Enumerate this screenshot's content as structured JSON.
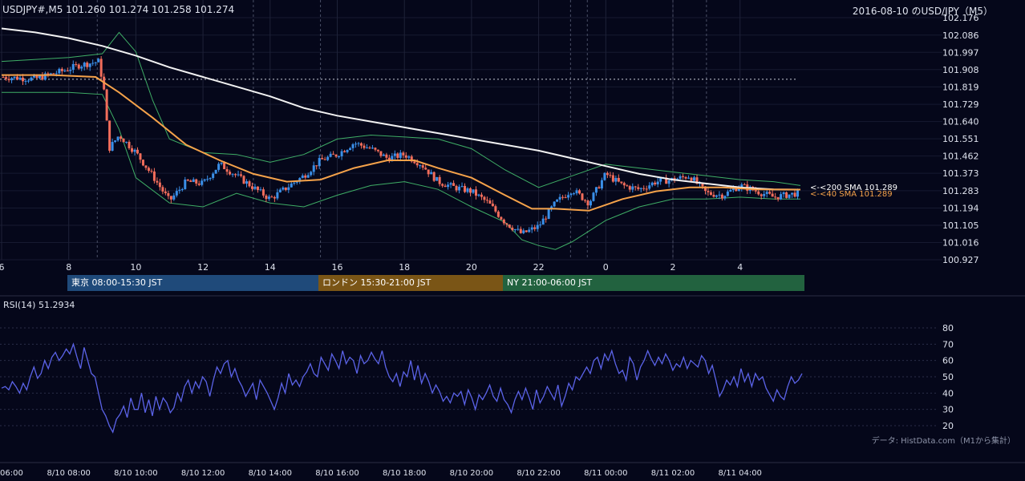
{
  "header": {
    "symbol_line": "USDJPY#,M5 101.260 101.274 101.258 101.274",
    "title": "2016-08-10 のUSD/JPY（M5）"
  },
  "sessions": [
    {
      "label": "東京 08:00-15:30 JST",
      "color": "#1f4a7a"
    },
    {
      "label": "ロンドン 15:30-21:00 JST",
      "color": "#7a5516"
    },
    {
      "label": "NY 21:00-06:00 JST",
      "color": "#22623f"
    }
  ],
  "rsi_label": "RSI(14) 51.2934",
  "credit": "データ: HistData.com（M1から集計）",
  "chart_data": [
    {
      "type": "candlestick",
      "title": "2016-08-10 のUSD/JPY（M5）",
      "y_ticks": [
        "102.176",
        "102.086",
        "101.997",
        "101.908",
        "101.819",
        "101.729",
        "101.640",
        "101.551",
        "101.462",
        "101.373",
        "101.283",
        "101.194",
        "101.105",
        "101.016",
        "100.927"
      ],
      "ylim": [
        100.927,
        102.176
      ],
      "x_ticks": [
        "6",
        "8",
        "10",
        "12",
        "14",
        "16",
        "18",
        "20",
        "22",
        "0",
        "2",
        "4"
      ],
      "x_hours": [
        6,
        8,
        10,
        12,
        14,
        16,
        18,
        20,
        22,
        24,
        26,
        28
      ],
      "xlim_hours": [
        6,
        29.8
      ],
      "bottom_x_ticks": [
        "06:00",
        "8/10 08:00",
        "8/10 10:00",
        "8/10 12:00",
        "8/10 14:00",
        "8/10 16:00",
        "8/10 18:00",
        "8/10 20:00",
        "8/10 22:00",
        "8/11 00:00",
        "8/11 02:00",
        "8/11 04:00"
      ],
      "sma200_label": "<-<200 SMA 101.289",
      "sma20_label": "<-<40 SMA 101.289",
      "previous_close_level": 101.858,
      "close_path": [
        [
          6.0,
          101.87
        ],
        [
          7.0,
          101.86
        ],
        [
          7.8,
          101.9
        ],
        [
          8.3,
          101.93
        ],
        [
          8.9,
          101.95
        ],
        [
          9.05,
          101.8
        ],
        [
          9.2,
          101.5
        ],
        [
          9.5,
          101.57
        ],
        [
          10.0,
          101.48
        ],
        [
          10.5,
          101.36
        ],
        [
          11.0,
          101.23
        ],
        [
          11.5,
          101.33
        ],
        [
          12.0,
          101.32
        ],
        [
          12.5,
          101.42
        ],
        [
          13.0,
          101.36
        ],
        [
          13.5,
          101.3
        ],
        [
          14.0,
          101.24
        ],
        [
          14.5,
          101.3
        ],
        [
          15.0,
          101.36
        ],
        [
          15.5,
          101.44
        ],
        [
          16.0,
          101.47
        ],
        [
          16.5,
          101.53
        ],
        [
          17.0,
          101.5
        ],
        [
          17.5,
          101.45
        ],
        [
          18.0,
          101.47
        ],
        [
          18.5,
          101.42
        ],
        [
          19.0,
          101.33
        ],
        [
          19.5,
          101.3
        ],
        [
          20.0,
          101.28
        ],
        [
          20.5,
          101.22
        ],
        [
          21.0,
          101.12
        ],
        [
          21.5,
          101.06
        ],
        [
          22.0,
          101.1
        ],
        [
          22.5,
          101.22
        ],
        [
          23.0,
          101.29
        ],
        [
          23.5,
          101.22
        ],
        [
          24.0,
          101.37
        ],
        [
          24.5,
          101.31
        ],
        [
          25.0,
          101.29
        ],
        [
          25.5,
          101.33
        ],
        [
          26.0,
          101.34
        ],
        [
          26.5,
          101.36
        ],
        [
          27.0,
          101.27
        ],
        [
          27.5,
          101.26
        ],
        [
          28.0,
          101.31
        ],
        [
          28.5,
          101.28
        ],
        [
          29.0,
          101.25
        ],
        [
          29.7,
          101.27
        ]
      ],
      "sma200_path": [
        [
          6.0,
          102.12
        ],
        [
          7.0,
          102.1
        ],
        [
          8.0,
          102.07
        ],
        [
          9.0,
          102.03
        ],
        [
          10.0,
          101.98
        ],
        [
          11.0,
          101.92
        ],
        [
          12.0,
          101.87
        ],
        [
          13.0,
          101.82
        ],
        [
          14.0,
          101.77
        ],
        [
          15.0,
          101.71
        ],
        [
          16.0,
          101.67
        ],
        [
          17.0,
          101.64
        ],
        [
          18.0,
          101.61
        ],
        [
          19.0,
          101.58
        ],
        [
          20.0,
          101.55
        ],
        [
          21.0,
          101.52
        ],
        [
          22.0,
          101.49
        ],
        [
          23.0,
          101.45
        ],
        [
          24.0,
          101.41
        ],
        [
          25.0,
          101.37
        ],
        [
          26.0,
          101.34
        ],
        [
          27.0,
          101.32
        ],
        [
          28.0,
          101.3
        ],
        [
          29.0,
          101.29
        ],
        [
          29.8,
          101.289
        ]
      ],
      "sma20_path": [
        [
          6.0,
          101.88
        ],
        [
          7.5,
          101.88
        ],
        [
          8.8,
          101.87
        ],
        [
          9.5,
          101.79
        ],
        [
          10.5,
          101.66
        ],
        [
          11.5,
          101.52
        ],
        [
          12.5,
          101.44
        ],
        [
          13.5,
          101.37
        ],
        [
          14.5,
          101.33
        ],
        [
          15.5,
          101.34
        ],
        [
          16.5,
          101.4
        ],
        [
          17.5,
          101.44
        ],
        [
          18.3,
          101.44
        ],
        [
          19.0,
          101.4
        ],
        [
          20.0,
          101.35
        ],
        [
          21.0,
          101.26
        ],
        [
          21.8,
          101.19
        ],
        [
          22.5,
          101.19
        ],
        [
          23.5,
          101.18
        ],
        [
          24.5,
          101.24
        ],
        [
          25.5,
          101.28
        ],
        [
          26.5,
          101.3
        ],
        [
          27.5,
          101.3
        ],
        [
          28.5,
          101.29
        ],
        [
          29.8,
          101.289
        ]
      ],
      "bb_upper_path": [
        [
          6.0,
          101.95
        ],
        [
          8.0,
          101.97
        ],
        [
          9.0,
          101.99
        ],
        [
          9.5,
          102.1
        ],
        [
          10.0,
          102.0
        ],
        [
          10.5,
          101.75
        ],
        [
          11.0,
          101.55
        ],
        [
          12.0,
          101.48
        ],
        [
          13.0,
          101.47
        ],
        [
          14.0,
          101.43
        ],
        [
          15.0,
          101.47
        ],
        [
          16.0,
          101.55
        ],
        [
          17.0,
          101.57
        ],
        [
          18.0,
          101.56
        ],
        [
          19.0,
          101.55
        ],
        [
          20.0,
          101.5
        ],
        [
          21.0,
          101.39
        ],
        [
          22.0,
          101.3
        ],
        [
          23.0,
          101.36
        ],
        [
          24.0,
          101.42
        ],
        [
          25.0,
          101.4
        ],
        [
          26.0,
          101.38
        ],
        [
          27.0,
          101.36
        ],
        [
          28.0,
          101.34
        ],
        [
          29.0,
          101.33
        ],
        [
          29.8,
          101.31
        ]
      ],
      "bb_lower_path": [
        [
          6.0,
          101.79
        ],
        [
          8.0,
          101.79
        ],
        [
          9.0,
          101.78
        ],
        [
          9.5,
          101.6
        ],
        [
          10.0,
          101.35
        ],
        [
          11.0,
          101.22
        ],
        [
          12.0,
          101.2
        ],
        [
          13.0,
          101.27
        ],
        [
          14.0,
          101.22
        ],
        [
          15.0,
          101.2
        ],
        [
          16.0,
          101.26
        ],
        [
          17.0,
          101.31
        ],
        [
          18.0,
          101.33
        ],
        [
          19.0,
          101.29
        ],
        [
          20.0,
          101.2
        ],
        [
          21.0,
          101.12
        ],
        [
          21.5,
          101.03
        ],
        [
          22.0,
          101.0
        ],
        [
          22.5,
          100.98
        ],
        [
          23.0,
          101.02
        ],
        [
          24.0,
          101.13
        ],
        [
          25.0,
          101.2
        ],
        [
          26.0,
          101.24
        ],
        [
          27.0,
          101.24
        ],
        [
          28.0,
          101.25
        ],
        [
          29.0,
          101.24
        ],
        [
          29.8,
          101.24
        ]
      ]
    },
    {
      "type": "line",
      "title": "RSI(14) 51.2934",
      "y_ticks": [
        "80",
        "70",
        "60",
        "50",
        "40",
        "30",
        "20"
      ],
      "ylim": [
        20,
        80
      ],
      "values": [
        43,
        44,
        42,
        47,
        44,
        40,
        46,
        42,
        50,
        56,
        49,
        52,
        60,
        55,
        62,
        65,
        60,
        63,
        67,
        64,
        70,
        62,
        55,
        68,
        60,
        52,
        50,
        40,
        30,
        26,
        20,
        16,
        24,
        27,
        32,
        25,
        37,
        30,
        30,
        40,
        28,
        36,
        26,
        38,
        30,
        37,
        34,
        28,
        31,
        40,
        35,
        44,
        48,
        40,
        47,
        43,
        50,
        47,
        38,
        48,
        56,
        52,
        58,
        60,
        50,
        55,
        48,
        44,
        38,
        42,
        46,
        36,
        48,
        44,
        40,
        35,
        30,
        37,
        46,
        40,
        52,
        45,
        48,
        44,
        50,
        53,
        58,
        52,
        50,
        62,
        58,
        54,
        64,
        60,
        55,
        66,
        58,
        62,
        60,
        52,
        63,
        58,
        60,
        65,
        61,
        58,
        66,
        56,
        50,
        47,
        52,
        44,
        53,
        50,
        60,
        48,
        57,
        46,
        52,
        47,
        40,
        45,
        41,
        35,
        38,
        34,
        40,
        38,
        41,
        33,
        42,
        37,
        30,
        39,
        36,
        40,
        45,
        38,
        35,
        43,
        36,
        33,
        28,
        36,
        41,
        36,
        43,
        37,
        30,
        42,
        34,
        38,
        44,
        40,
        36,
        45,
        32,
        38,
        46,
        42,
        50,
        48,
        52,
        56,
        52,
        60,
        62,
        55,
        64,
        60,
        66,
        58,
        52,
        54,
        48,
        62,
        58,
        48,
        56,
        60,
        66,
        61,
        57,
        62,
        58,
        64,
        60,
        54,
        58,
        56,
        62,
        55,
        60,
        58,
        56,
        63,
        60,
        52,
        57,
        48,
        38,
        42,
        48,
        45,
        50,
        44,
        55,
        47,
        52,
        44,
        52,
        48,
        50,
        43,
        39,
        35,
        42,
        38,
        36,
        44,
        50,
        46,
        48,
        52
      ]
    }
  ]
}
